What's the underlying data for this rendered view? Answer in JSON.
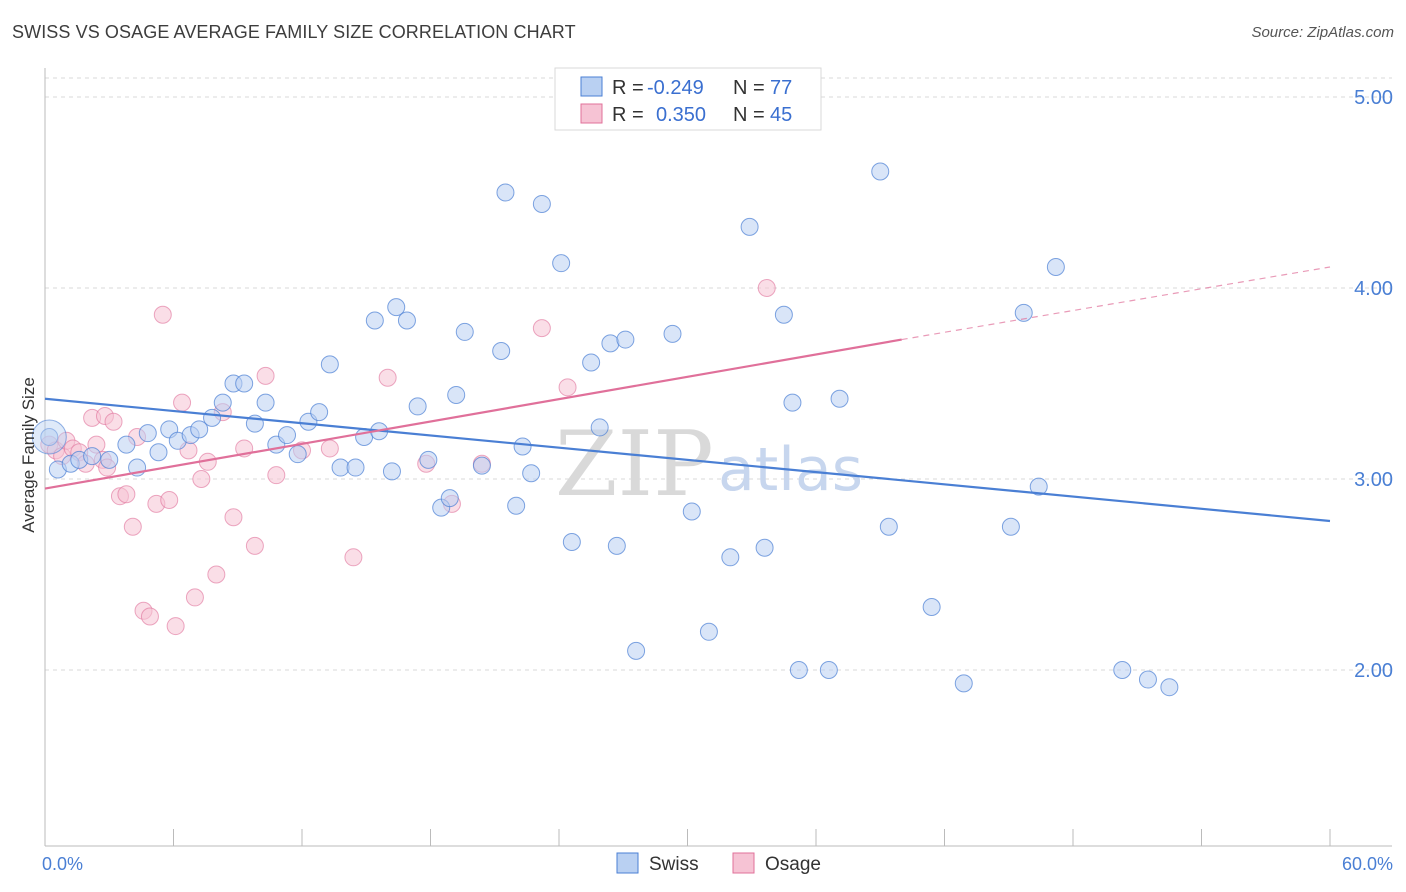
{
  "header": {
    "title": "SWISS VS OSAGE AVERAGE FAMILY SIZE CORRELATION CHART",
    "source": "Source: ZipAtlas.com"
  },
  "watermark": {
    "part1": "ZIP",
    "part2": "atlas"
  },
  "colors": {
    "swiss": "#4a7fd4",
    "swiss_fill": "#b9d0f2",
    "osage": "#e0709a",
    "osage_fill": "#f6c3d4",
    "grid": "#d9d9d9",
    "axis_text": "#4a7fd4"
  },
  "legend": {
    "rows": [
      {
        "r_label": "R =",
        "r_value": "-0.249",
        "n_label": "N =",
        "n_value": "77"
      },
      {
        "r_label": "R =",
        "r_value": "0.350",
        "n_label": "N =",
        "n_value": "45"
      }
    ]
  },
  "chart_data": {
    "type": "scatter",
    "title": "SWISS VS OSAGE AVERAGE FAMILY SIZE CORRELATION CHART",
    "xlabel": "",
    "ylabel": "Average Family Size",
    "xlim": [
      0,
      60
    ],
    "ylim": [
      1.0,
      5.1
    ],
    "x_tick_labels": [
      "0.0%",
      "60.0%"
    ],
    "y_ticks": [
      2.0,
      3.0,
      4.0,
      5.0
    ],
    "y_tick_labels": [
      "2.00",
      "3.00",
      "4.00",
      "5.00"
    ],
    "grid": "horizontal dashed",
    "legend_position": "top-center",
    "series": [
      {
        "name": "Swiss",
        "color": "#4a7fd4",
        "r": -0.249,
        "n": 77,
        "trend": {
          "x": [
            0,
            60
          ],
          "y": [
            3.42,
            2.78
          ]
        },
        "points": [
          [
            0.2,
            3.22
          ],
          [
            0.6,
            3.05
          ],
          [
            1.2,
            3.08
          ],
          [
            1.6,
            3.1
          ],
          [
            2.2,
            3.12
          ],
          [
            3.0,
            3.1
          ],
          [
            3.8,
            3.18
          ],
          [
            4.3,
            3.06
          ],
          [
            4.8,
            3.24
          ],
          [
            5.3,
            3.14
          ],
          [
            5.8,
            3.26
          ],
          [
            6.2,
            3.2
          ],
          [
            6.8,
            3.23
          ],
          [
            7.2,
            3.26
          ],
          [
            7.8,
            3.32
          ],
          [
            8.3,
            3.4
          ],
          [
            8.8,
            3.5
          ],
          [
            9.3,
            3.5
          ],
          [
            9.8,
            3.29
          ],
          [
            10.3,
            3.4
          ],
          [
            10.8,
            3.18
          ],
          [
            11.3,
            3.23
          ],
          [
            11.8,
            3.13
          ],
          [
            12.3,
            3.3
          ],
          [
            12.8,
            3.35
          ],
          [
            13.3,
            3.6
          ],
          [
            13.8,
            3.06
          ],
          [
            14.5,
            3.06
          ],
          [
            14.9,
            3.22
          ],
          [
            15.6,
            3.25
          ],
          [
            15.4,
            3.83
          ],
          [
            16.4,
            3.9
          ],
          [
            16.9,
            3.83
          ],
          [
            17.4,
            3.38
          ],
          [
            17.9,
            3.1
          ],
          [
            18.5,
            2.85
          ],
          [
            18.9,
            2.9
          ],
          [
            19.2,
            3.44
          ],
          [
            19.6,
            3.77
          ],
          [
            20.4,
            3.07
          ],
          [
            21.3,
            3.67
          ],
          [
            21.5,
            4.5
          ],
          [
            22.0,
            2.86
          ],
          [
            22.3,
            3.17
          ],
          [
            22.7,
            3.03
          ],
          [
            23.2,
            4.44
          ],
          [
            24.1,
            4.13
          ],
          [
            24.6,
            2.67
          ],
          [
            25.5,
            3.61
          ],
          [
            25.9,
            3.27
          ],
          [
            26.4,
            3.71
          ],
          [
            26.7,
            2.65
          ],
          [
            27.1,
            3.73
          ],
          [
            27.6,
            2.1
          ],
          [
            29.3,
            3.76
          ],
          [
            30.2,
            2.83
          ],
          [
            31.0,
            2.2
          ],
          [
            32.0,
            2.59
          ],
          [
            32.9,
            4.32
          ],
          [
            33.6,
            2.64
          ],
          [
            34.5,
            3.86
          ],
          [
            34.9,
            3.4
          ],
          [
            35.2,
            2.0
          ],
          [
            36.6,
            2.0
          ],
          [
            37.1,
            3.42
          ],
          [
            39.0,
            4.61
          ],
          [
            39.4,
            2.75
          ],
          [
            41.4,
            2.33
          ],
          [
            42.9,
            1.93
          ],
          [
            45.1,
            2.75
          ],
          [
            45.7,
            3.87
          ],
          [
            46.4,
            2.96
          ],
          [
            47.2,
            4.11
          ],
          [
            50.3,
            2.0
          ],
          [
            51.5,
            1.95
          ],
          [
            52.5,
            1.91
          ],
          [
            16.2,
            3.04
          ]
        ]
      },
      {
        "name": "Osage",
        "color": "#e0709a",
        "r": 0.35,
        "n": 45,
        "trend": {
          "x": [
            0,
            40
          ],
          "y": [
            2.95,
            3.73
          ]
        },
        "trend_dashed": {
          "x": [
            40,
            60
          ],
          "y": [
            3.73,
            4.11
          ]
        },
        "points": [
          [
            0.2,
            3.18
          ],
          [
            0.5,
            3.15
          ],
          [
            0.8,
            3.12
          ],
          [
            1.0,
            3.2
          ],
          [
            1.3,
            3.16
          ],
          [
            1.6,
            3.14
          ],
          [
            1.9,
            3.08
          ],
          [
            2.2,
            3.32
          ],
          [
            2.4,
            3.18
          ],
          [
            2.7,
            3.1
          ],
          [
            2.9,
            3.06
          ],
          [
            2.8,
            3.33
          ],
          [
            3.2,
            3.3
          ],
          [
            3.5,
            2.91
          ],
          [
            3.8,
            2.92
          ],
          [
            4.1,
            2.75
          ],
          [
            4.3,
            3.22
          ],
          [
            4.6,
            2.31
          ],
          [
            4.9,
            2.28
          ],
          [
            5.2,
            2.87
          ],
          [
            5.5,
            3.86
          ],
          [
            5.8,
            2.89
          ],
          [
            6.1,
            2.23
          ],
          [
            6.4,
            3.4
          ],
          [
            6.7,
            3.15
          ],
          [
            7.0,
            2.38
          ],
          [
            7.3,
            3.0
          ],
          [
            7.6,
            3.09
          ],
          [
            8.0,
            2.5
          ],
          [
            8.3,
            3.35
          ],
          [
            8.8,
            2.8
          ],
          [
            9.3,
            3.16
          ],
          [
            9.8,
            2.65
          ],
          [
            10.3,
            3.54
          ],
          [
            10.8,
            3.02
          ],
          [
            12.0,
            3.15
          ],
          [
            13.3,
            3.16
          ],
          [
            14.4,
            2.59
          ],
          [
            16.0,
            3.53
          ],
          [
            17.8,
            3.08
          ],
          [
            19.0,
            2.87
          ],
          [
            20.4,
            3.08
          ],
          [
            23.2,
            3.79
          ],
          [
            24.4,
            3.48
          ],
          [
            33.7,
            4.0
          ]
        ]
      }
    ]
  },
  "bottom_legend": {
    "items": [
      "Swiss",
      "Osage"
    ]
  }
}
